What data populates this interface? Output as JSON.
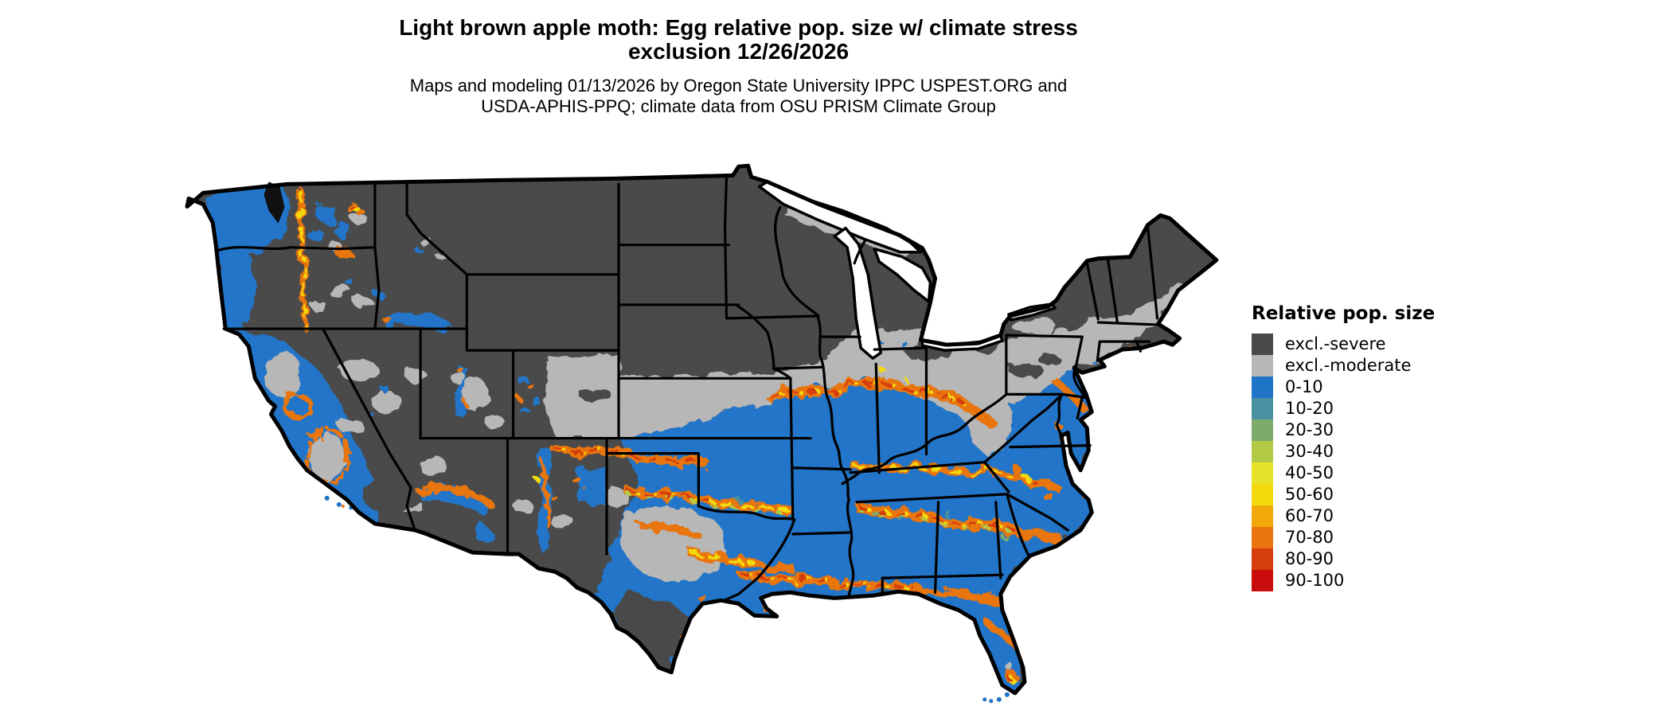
{
  "header": {
    "title_line1": "Light brown apple moth: Egg relative pop. size w/ climate stress",
    "title_line2": "exclusion 12/26/2026",
    "subtitle_line1": "Maps and modeling 01/13/2026 by Oregon State University IPPC USPEST.ORG and",
    "subtitle_line2": "USDA-APHIS-PPQ; climate data from OSU PRISM Climate Group"
  },
  "legend": {
    "title": "Relative pop. size",
    "items": [
      {
        "label": "excl.-severe",
        "color": "#4a4a4a"
      },
      {
        "label": "excl.-moderate",
        "color": "#b7b7b7"
      },
      {
        "label": "0-10",
        "color": "#2074c8"
      },
      {
        "label": "10-20",
        "color": "#4b90a1"
      },
      {
        "label": "20-30",
        "color": "#7cab6d"
      },
      {
        "label": "30-40",
        "color": "#b2ca44"
      },
      {
        "label": "40-50",
        "color": "#e7e32a"
      },
      {
        "label": "50-60",
        "color": "#f4d90d"
      },
      {
        "label": "60-70",
        "color": "#f0a80a"
      },
      {
        "label": "70-80",
        "color": "#e87410"
      },
      {
        "label": "80-90",
        "color": "#d63d0e"
      },
      {
        "label": "90-100",
        "color": "#c90c0c"
      }
    ]
  },
  "map": {
    "region": "Contiguous United States",
    "colors": {
      "water": "#ffffff",
      "state_border": "#000000"
    }
  }
}
